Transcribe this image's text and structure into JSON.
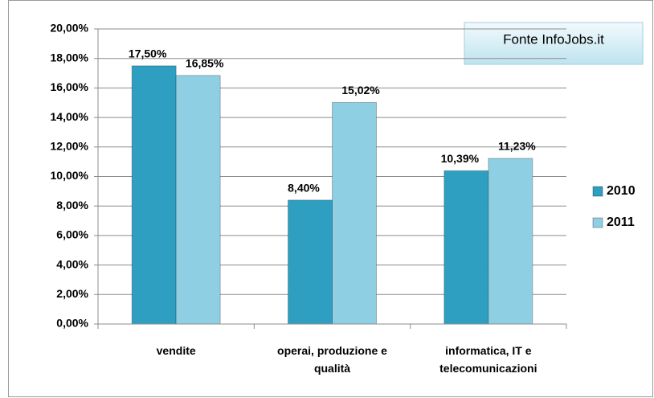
{
  "chart_data": {
    "type": "bar",
    "categories": [
      "vendite",
      "operai, produzione e qualità",
      "informatica, IT e telecomunicazioni"
    ],
    "series": [
      {
        "name": "2010",
        "color": "#2e9fc0",
        "values": [
          17.5,
          8.4,
          10.39
        ],
        "value_labels": [
          "17,50%",
          "8,40%",
          "10,39%"
        ]
      },
      {
        "name": "2011",
        "color": "#8fcfe3",
        "values": [
          16.85,
          15.02,
          11.23
        ],
        "value_labels": [
          "16,85%",
          "15,02%",
          "11,23%"
        ]
      }
    ],
    "ylim": [
      0,
      20
    ],
    "yticks": [
      {
        "value": 0,
        "label": "0,00%"
      },
      {
        "value": 2,
        "label": "2,00%"
      },
      {
        "value": 4,
        "label": "4,00%"
      },
      {
        "value": 6,
        "label": "6,00%"
      },
      {
        "value": 8,
        "label": "8,00%"
      },
      {
        "value": 10,
        "label": "10,00%"
      },
      {
        "value": 12,
        "label": "12,00%"
      },
      {
        "value": 14,
        "label": "14,00%"
      },
      {
        "value": 16,
        "label": "16,00%"
      },
      {
        "value": 18,
        "label": "18,00%"
      },
      {
        "value": 20,
        "label": "20,00%"
      }
    ],
    "grid": true,
    "legend": "right",
    "annotation": "Fonte InfoJobs.it"
  }
}
